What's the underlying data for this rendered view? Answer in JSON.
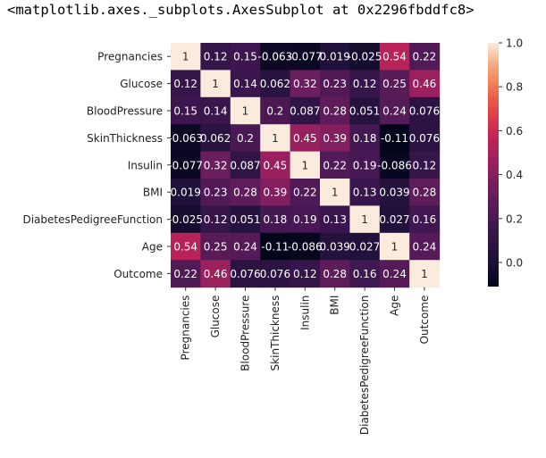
{
  "output_repr": "<matplotlib.axes._subplots.AxesSubplot at 0x2296fbddfc8>",
  "chart_data": {
    "type": "heatmap",
    "title": "",
    "xlabel": "",
    "ylabel": "",
    "labels": [
      "Pregnancies",
      "Glucose",
      "BloodPressure",
      "SkinThickness",
      "Insulin",
      "BMI",
      "DiabetesPedigreeFunction",
      "Age",
      "Outcome"
    ],
    "values": [
      [
        1,
        0.12,
        0.15,
        -0.063,
        -0.077,
        0.019,
        -0.025,
        0.54,
        0.22
      ],
      [
        0.12,
        1,
        0.14,
        0.062,
        0.32,
        0.23,
        0.12,
        0.25,
        0.46
      ],
      [
        0.15,
        0.14,
        1,
        0.2,
        0.087,
        0.28,
        0.051,
        0.24,
        0.076
      ],
      [
        -0.063,
        0.062,
        0.2,
        1,
        0.45,
        0.39,
        0.18,
        -0.11,
        0.076
      ],
      [
        -0.077,
        0.32,
        0.087,
        0.45,
        1,
        0.22,
        0.19,
        -0.086,
        0.12
      ],
      [
        0.019,
        0.23,
        0.28,
        0.39,
        0.22,
        1,
        0.13,
        0.039,
        0.28
      ],
      [
        -0.025,
        0.12,
        0.051,
        0.18,
        0.19,
        0.13,
        1,
        0.027,
        0.16
      ],
      [
        0.54,
        0.25,
        0.24,
        -0.11,
        -0.086,
        0.039,
        0.027,
        1,
        0.24
      ],
      [
        0.22,
        0.46,
        0.076,
        0.076,
        0.12,
        0.28,
        0.16,
        0.24,
        1
      ]
    ],
    "display_values": [
      [
        "1",
        "0.12",
        "0.15",
        "-0.063",
        "-0.077",
        "0.019",
        "-0.025",
        "0.54",
        "0.22"
      ],
      [
        "0.12",
        "1",
        "0.14",
        "0.062",
        "0.32",
        "0.23",
        "0.12",
        "0.25",
        "0.46"
      ],
      [
        "0.15",
        "0.14",
        "1",
        "0.2",
        "0.087",
        "0.28",
        "0.051",
        "0.24",
        "0.076"
      ],
      [
        "-0.063",
        "0.062",
        "0.2",
        "1",
        "0.45",
        "0.39",
        "0.18",
        "-0.11",
        "0.076"
      ],
      [
        "-0.077",
        "0.32",
        "0.087",
        "0.45",
        "1",
        "0.22",
        "0.19",
        "-0.086",
        "0.12"
      ],
      [
        "0.019",
        "0.23",
        "0.28",
        "0.39",
        "0.22",
        "1",
        "0.13",
        "0.039",
        "0.28"
      ],
      [
        "-0.025",
        "0.12",
        "0.051",
        "0.18",
        "0.19",
        "0.13",
        "1",
        "0.027",
        "0.16"
      ],
      [
        "0.54",
        "0.25",
        "0.24",
        "-0.11",
        "-0.086",
        "0.039",
        "0.027",
        "1",
        "0.24"
      ],
      [
        "0.22",
        "0.46",
        "0.076",
        "0.076",
        "0.12",
        "0.28",
        "0.16",
        "0.24",
        "1"
      ]
    ],
    "colormap": "rocket",
    "colorbar": {
      "range": [
        -0.11,
        1.0
      ],
      "ticks": [
        0.0,
        0.2,
        0.4,
        0.6,
        0.8,
        1.0
      ],
      "tick_labels": [
        "0.0",
        "0.2",
        "0.4",
        "0.6",
        "0.8",
        "1.0"
      ]
    },
    "annot_dark_text_color": "#262626",
    "annot_light_text_color": "#ffffff"
  }
}
